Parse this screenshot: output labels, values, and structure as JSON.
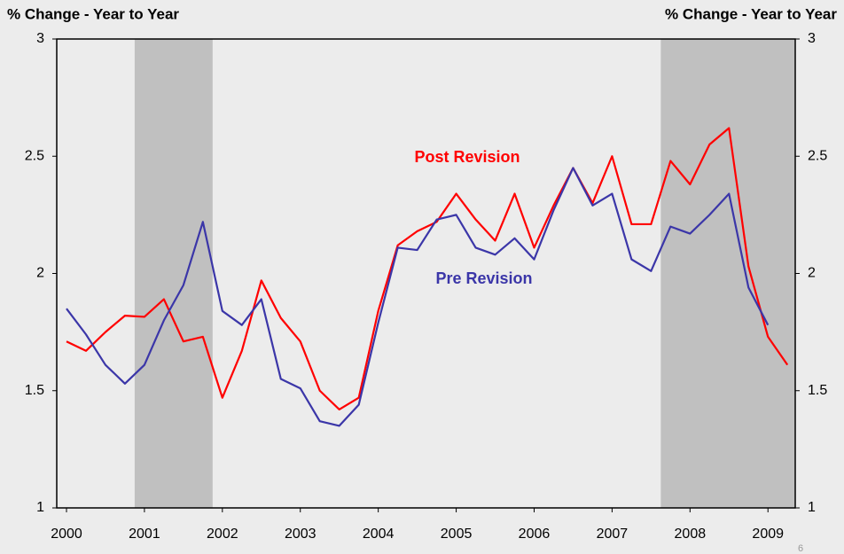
{
  "chart_data": {
    "type": "line",
    "y_label_left": "% Change - Year to Year",
    "y_label_right": "% Change - Year to Year",
    "page_number": "6",
    "x": [
      2000,
      2000.25,
      2000.5,
      2000.75,
      2001,
      2001.25,
      2001.5,
      2001.75,
      2002,
      2002.25,
      2002.5,
      2002.75,
      2003,
      2003.25,
      2003.5,
      2003.75,
      2004,
      2004.25,
      2004.5,
      2004.75,
      2005,
      2005.25,
      2005.5,
      2005.75,
      2006,
      2006.25,
      2006.5,
      2006.75,
      2007,
      2007.25,
      2007.5,
      2007.75,
      2008,
      2008.25,
      2008.5,
      2008.75,
      2009,
      2009.25
    ],
    "series": [
      {
        "name": "Post Revision",
        "color": "#ff0000",
        "values": [
          1.71,
          1.67,
          1.75,
          1.82,
          1.815,
          1.89,
          1.71,
          1.73,
          1.47,
          1.67,
          1.97,
          1.81,
          1.71,
          1.5,
          1.42,
          1.47,
          1.84,
          2.12,
          2.18,
          2.22,
          2.34,
          2.23,
          2.14,
          2.34,
          2.11,
          2.29,
          2.45,
          2.3,
          2.5,
          2.21,
          2.21,
          2.48,
          2.38,
          2.55,
          2.62,
          2.03,
          1.73,
          1.61
        ]
      },
      {
        "name": "Pre Revision",
        "color": "#3b36a8",
        "values": [
          1.85,
          1.74,
          1.61,
          1.53,
          1.61,
          1.8,
          1.95,
          2.22,
          1.84,
          1.78,
          1.89,
          1.55,
          1.51,
          1.37,
          1.35,
          1.44,
          1.79,
          2.11,
          2.1,
          2.23,
          2.25,
          2.11,
          2.08,
          2.15,
          2.06,
          2.27,
          2.45,
          2.29,
          2.34,
          2.06,
          2.01,
          2.2,
          2.17,
          2.25,
          2.34,
          1.94,
          1.78,
          null
        ]
      }
    ],
    "shaded_regions": [
      [
        2000.875,
        2001.875
      ],
      [
        2007.625,
        2009.35
      ]
    ],
    "shade_color": "#c0c0c0",
    "xlim": [
      1999.875,
      2009.35
    ],
    "xticks": [
      2000,
      2001,
      2002,
      2003,
      2004,
      2005,
      2006,
      2007,
      2008,
      2009
    ],
    "ylim": [
      1,
      3
    ],
    "yticks": [
      1,
      1.5,
      2,
      2.5,
      3
    ],
    "y2lim": [
      1,
      3
    ],
    "y2ticks": [
      1,
      1.5,
      2,
      2.5,
      3
    ]
  }
}
